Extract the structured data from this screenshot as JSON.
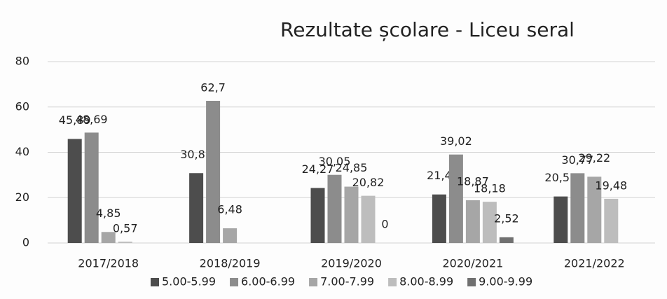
{
  "chart_data": {
    "type": "bar",
    "title": "Rezultate școlare - Liceu seral",
    "categories": [
      "2017/2018",
      "2018/2019",
      "2019/2020",
      "2020/2021",
      "2021/2022"
    ],
    "series": [
      {
        "name": "5.00-5.99",
        "color": "#4d4d4d",
        "values": [
          45.89,
          30.81,
          24.27,
          21.4,
          20.51
        ],
        "value_labels": [
          "45,89",
          "30,81",
          "24,27",
          "21,4",
          "20,51"
        ]
      },
      {
        "name": "6.00-6.99",
        "color": "#8c8c8c",
        "values": [
          48.69,
          62.7,
          30.05,
          39.02,
          30.77
        ],
        "value_labels": [
          "48,69",
          "62,7",
          "30,05",
          "39,02",
          "30,77"
        ]
      },
      {
        "name": "7.00-7.99",
        "color": "#a6a6a6",
        "values": [
          4.85,
          6.48,
          24.85,
          18.87,
          29.22
        ],
        "value_labels": [
          "4,85",
          "6,48",
          "24,85",
          "18,87",
          "29,22"
        ]
      },
      {
        "name": "8.00-8.99",
        "color": "#bdbdbd",
        "values": [
          0.57,
          null,
          20.82,
          18.18,
          19.48
        ],
        "value_labels": [
          "0,57",
          null,
          "20,82",
          "18,18",
          "19,48"
        ]
      },
      {
        "name": "9.00-9.99",
        "color": "#707070",
        "values": [
          null,
          null,
          0,
          2.52,
          null
        ],
        "value_labels": [
          null,
          null,
          "0",
          "2,52",
          null
        ]
      }
    ],
    "ylim": [
      0,
      80
    ],
    "yticks": [
      0,
      20,
      40,
      60,
      80
    ],
    "grid": true,
    "legend": "bottom"
  }
}
